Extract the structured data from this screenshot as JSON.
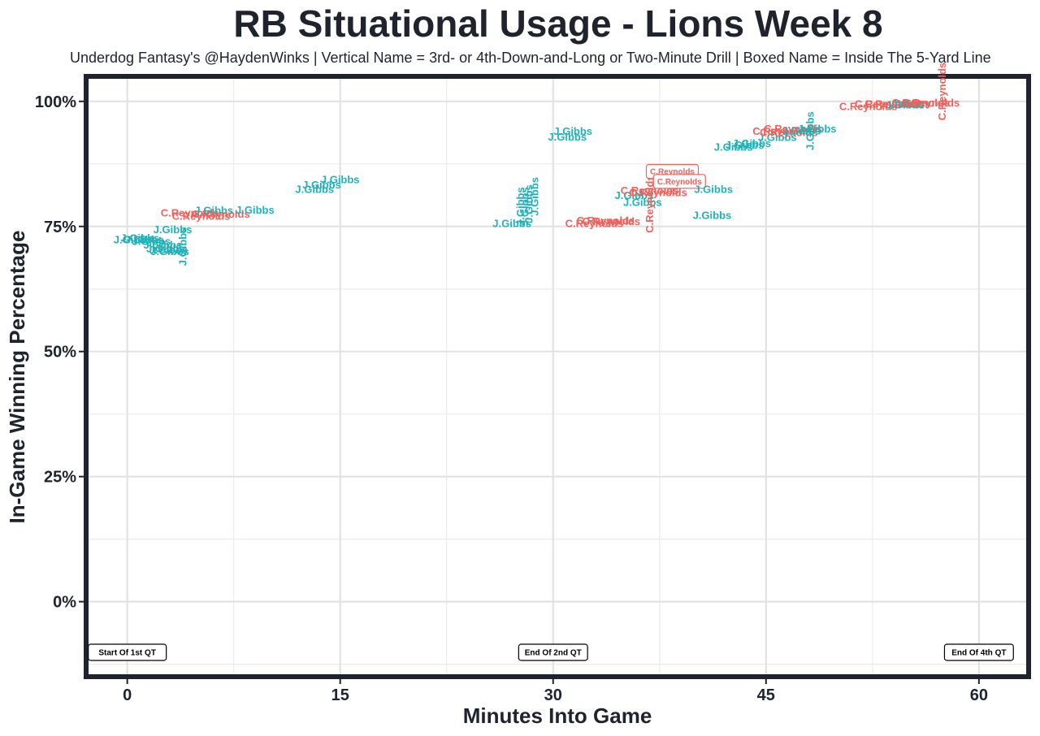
{
  "chart_data": {
    "type": "scatter",
    "title": "RB Situational Usage - Lions Week 8",
    "subtitle": "Underdog Fantasy's @HaydenWinks | Vertical Name = 3rd- or 4th-Down-and-Long or Two-Minute Drill | Boxed Name = Inside The 5-Yard Line",
    "xlabel": "Minutes Into Game",
    "ylabel": "In-Game Winning Percentage",
    "xlim": [
      -2.9,
      63.5
    ],
    "ylim": [
      -0.15,
      1.05
    ],
    "x_ticks": [
      0,
      15,
      30,
      45,
      60
    ],
    "x_tick_labels": [
      "0",
      "15",
      "30",
      "45",
      "60"
    ],
    "y_ticks": [
      0,
      0.25,
      0.5,
      0.75,
      1.0
    ],
    "y_tick_labels": [
      "0%",
      "25%",
      "50%",
      "75%",
      "100%"
    ],
    "grid": true,
    "colors": {
      "J.Gibbs": "#20b2b8",
      "C.Reynolds": "#f2605b",
      "text": "#1f232e",
      "frame": "#1f232e"
    },
    "quarter_markers": [
      {
        "x": 0,
        "label": "Start Of 1st QT"
      },
      {
        "x": 30,
        "label": "End Of 2nd QT"
      },
      {
        "x": 60,
        "label": "End Of 4th QT"
      }
    ],
    "points": [
      {
        "x": 0.4,
        "y": 0.724,
        "name": "J.Gibbs",
        "style": "normal"
      },
      {
        "x": 0.9,
        "y": 0.727,
        "name": "J.Gibbs",
        "style": "normal"
      },
      {
        "x": 1.2,
        "y": 0.724,
        "name": "J.Gibbs",
        "style": "normal"
      },
      {
        "x": 1.7,
        "y": 0.72,
        "name": "J.Gibbs",
        "style": "normal"
      },
      {
        "x": 2.5,
        "y": 0.713,
        "name": "J.Gibbs",
        "style": "normal"
      },
      {
        "x": 2.7,
        "y": 0.706,
        "name": "J.Gibbs",
        "style": "normal"
      },
      {
        "x": 2.9,
        "y": 0.703,
        "name": "J.Gibbs",
        "style": "normal"
      },
      {
        "x": 3.0,
        "y": 0.7,
        "name": "J.Gibbs",
        "style": "normal"
      },
      {
        "x": 3.2,
        "y": 0.744,
        "name": "J.Gibbs",
        "style": "normal"
      },
      {
        "x": 3.9,
        "y": 0.71,
        "name": "J.Gibbs",
        "style": "vertical"
      },
      {
        "x": 4.4,
        "y": 0.777,
        "name": "C.Reynolds",
        "style": "normal"
      },
      {
        "x": 5.2,
        "y": 0.771,
        "name": "C.Reynolds",
        "style": "normal"
      },
      {
        "x": 6.1,
        "y": 0.782,
        "name": "J.Gibbs",
        "style": "normal"
      },
      {
        "x": 6.6,
        "y": 0.775,
        "name": "C.Reynolds",
        "style": "normal"
      },
      {
        "x": 9.0,
        "y": 0.783,
        "name": "J.Gibbs",
        "style": "normal"
      },
      {
        "x": 13.2,
        "y": 0.824,
        "name": "J.Gibbs",
        "style": "normal"
      },
      {
        "x": 13.7,
        "y": 0.833,
        "name": "J.Gibbs",
        "style": "normal"
      },
      {
        "x": 15.0,
        "y": 0.844,
        "name": "J.Gibbs",
        "style": "normal"
      },
      {
        "x": 27.1,
        "y": 0.756,
        "name": "J.Gibbs",
        "style": "normal"
      },
      {
        "x": 27.7,
        "y": 0.79,
        "name": "J.Gibbs",
        "style": "vertical"
      },
      {
        "x": 28.0,
        "y": 0.79,
        "name": "J.Gibbs",
        "style": "vertical"
      },
      {
        "x": 28.3,
        "y": 0.795,
        "name": "J.Gibbs",
        "style": "vertical"
      },
      {
        "x": 28.7,
        "y": 0.81,
        "name": "J.Gibbs",
        "style": "vertical"
      },
      {
        "x": 31.0,
        "y": 0.929,
        "name": "J.Gibbs",
        "style": "normal"
      },
      {
        "x": 31.4,
        "y": 0.94,
        "name": "J.Gibbs",
        "style": "normal"
      },
      {
        "x": 32.9,
        "y": 0.756,
        "name": "C.Reynolds",
        "style": "normal"
      },
      {
        "x": 33.7,
        "y": 0.762,
        "name": "C.Reynolds",
        "style": "normal"
      },
      {
        "x": 34.1,
        "y": 0.76,
        "name": "C.Reynolds",
        "style": "normal"
      },
      {
        "x": 35.7,
        "y": 0.812,
        "name": "J.Gibbs",
        "style": "normal"
      },
      {
        "x": 36.3,
        "y": 0.798,
        "name": "J.Gibbs",
        "style": "normal"
      },
      {
        "x": 36.8,
        "y": 0.822,
        "name": "C.Reynolds",
        "style": "normal"
      },
      {
        "x": 37.4,
        "y": 0.818,
        "name": "C.Reynolds",
        "style": "normal"
      },
      {
        "x": 36.8,
        "y": 0.795,
        "name": "C.Reynolds",
        "style": "vertical"
      },
      {
        "x": 38.4,
        "y": 0.86,
        "name": "C.Reynolds",
        "style": "boxed"
      },
      {
        "x": 38.9,
        "y": 0.84,
        "name": "C.Reynolds",
        "style": "boxed"
      },
      {
        "x": 41.3,
        "y": 0.824,
        "name": "J.Gibbs",
        "style": "normal"
      },
      {
        "x": 41.2,
        "y": 0.772,
        "name": "J.Gibbs",
        "style": "normal"
      },
      {
        "x": 42.7,
        "y": 0.909,
        "name": "J.Gibbs",
        "style": "normal"
      },
      {
        "x": 43.5,
        "y": 0.913,
        "name": "J.Gibbs",
        "style": "normal"
      },
      {
        "x": 44.0,
        "y": 0.916,
        "name": "J.Gibbs",
        "style": "normal"
      },
      {
        "x": 45.8,
        "y": 0.928,
        "name": "J.Gibbs",
        "style": "normal"
      },
      {
        "x": 46.1,
        "y": 0.94,
        "name": "C.Reynolds",
        "style": "normal"
      },
      {
        "x": 46.6,
        "y": 0.938,
        "name": "C.Reynolds",
        "style": "normal"
      },
      {
        "x": 46.9,
        "y": 0.945,
        "name": "C.Reynolds",
        "style": "normal"
      },
      {
        "x": 47.5,
        "y": 0.941,
        "name": "J.Gibbs",
        "style": "normal"
      },
      {
        "x": 48.1,
        "y": 0.941,
        "name": "J.Gibbs",
        "style": "vertical"
      },
      {
        "x": 48.6,
        "y": 0.945,
        "name": "J.Gibbs",
        "style": "normal"
      },
      {
        "x": 52.2,
        "y": 0.99,
        "name": "C.Reynolds",
        "style": "normal"
      },
      {
        "x": 53.3,
        "y": 0.995,
        "name": "C.Reynolds",
        "style": "normal"
      },
      {
        "x": 54.0,
        "y": 0.995,
        "name": "C.Reynolds",
        "style": "normal"
      },
      {
        "x": 54.8,
        "y": 0.993,
        "name": "J.Gibbs",
        "style": "normal"
      },
      {
        "x": 55.2,
        "y": 0.995,
        "name": "J.Gibbs",
        "style": "normal"
      },
      {
        "x": 55.9,
        "y": 0.997,
        "name": "C.Reynolds",
        "style": "normal"
      },
      {
        "x": 56.6,
        "y": 0.997,
        "name": "C.Reynolds",
        "style": "normal"
      },
      {
        "x": 57.4,
        "y": 1.02,
        "name": "C.Reynolds",
        "style": "vertical"
      }
    ]
  }
}
